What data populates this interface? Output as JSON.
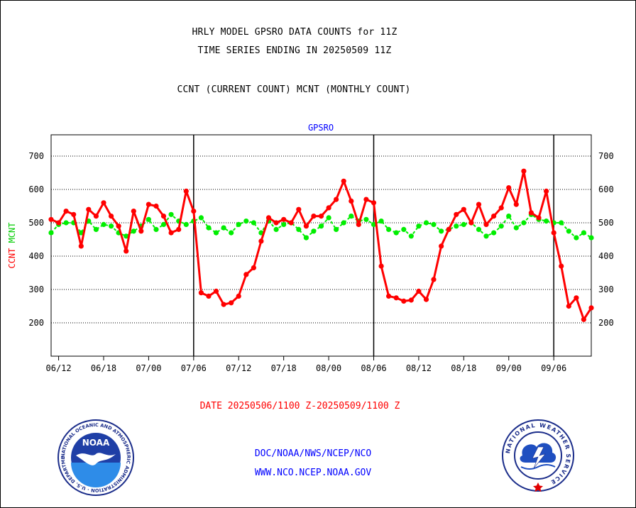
{
  "header": {
    "title_line1": "HRLY MODEL GPSRO DATA COUNTS for 11Z",
    "title_line2": "TIME SERIES ENDING IN 20250509 11Z",
    "subtitle": "CCNT (CURRENT COUNT) MCNT (MONTHLY COUNT)"
  },
  "footer": {
    "date_range": "DATE 20250506/1100 Z-20250509/1100 Z",
    "link1": "DOC/NOAA/NWS/NCEP/NCO",
    "link2": "WWW.NCO.NCEP.NOAA.GOV"
  },
  "logos": {
    "noaa_text": "NOAA",
    "noaa_ring": "NATIONAL OCEANIC AND ATMOSPHERIC ADMINISTRATION · U.S. DEPARTMENT OF COMMERCE",
    "nws_ring": "NATIONAL WEATHER SERVICE"
  },
  "colors": {
    "ccnt": "#ff0000",
    "mcnt": "#00ee00",
    "panel_label": "#0000ff",
    "axis": "#000000"
  },
  "chart_data": {
    "type": "line",
    "panel_label": "GPSRO",
    "ylabel": "CCNT  MCNT",
    "ylim": [
      100,
      760
    ],
    "yticks": [
      200,
      300,
      400,
      500,
      600,
      700
    ],
    "grid": "horizontal dotted",
    "x_tick_labels": [
      "06/12",
      "06/18",
      "07/00",
      "07/06",
      "07/12",
      "07/18",
      "08/00",
      "08/06",
      "08/12",
      "08/18",
      "09/00",
      "09/06"
    ],
    "x_tick_index": [
      1,
      7,
      13,
      19,
      25,
      31,
      37,
      43,
      49,
      55,
      61,
      67
    ],
    "x_range": [
      0,
      72
    ],
    "day_separator_index": [
      19,
      43,
      67
    ],
    "series": [
      {
        "name": "CCNT",
        "values": [
          510,
          500,
          535,
          525,
          430,
          540,
          520,
          560,
          520,
          490,
          415,
          535,
          475,
          555,
          550,
          520,
          470,
          480,
          595,
          535,
          290,
          280,
          295,
          255,
          260,
          280,
          345,
          365,
          445,
          515,
          500,
          510,
          500,
          540,
          490,
          520,
          520,
          545,
          570,
          625,
          565,
          495,
          570,
          560,
          370,
          280,
          275,
          265,
          268,
          295,
          270,
          330,
          430,
          480,
          525,
          540,
          500,
          555,
          495,
          520,
          545,
          605,
          555,
          655,
          530,
          515,
          595,
          470,
          370,
          250,
          275,
          210,
          245
        ]
      },
      {
        "name": "MCNT",
        "values": [
          470,
          495,
          500,
          500,
          470,
          505,
          480,
          495,
          490,
          470,
          460,
          475,
          490,
          510,
          480,
          495,
          525,
          505,
          495,
          505,
          515,
          485,
          470,
          485,
          470,
          495,
          505,
          500,
          470,
          505,
          480,
          495,
          500,
          480,
          455,
          475,
          490,
          515,
          480,
          500,
          520,
          505,
          510,
          495,
          505,
          480,
          470,
          480,
          460,
          490,
          500,
          495,
          475,
          480,
          490,
          495,
          500,
          480,
          460,
          470,
          490,
          520,
          485,
          500,
          525,
          510,
          505,
          500,
          500,
          475,
          455,
          470,
          455
        ]
      }
    ]
  }
}
